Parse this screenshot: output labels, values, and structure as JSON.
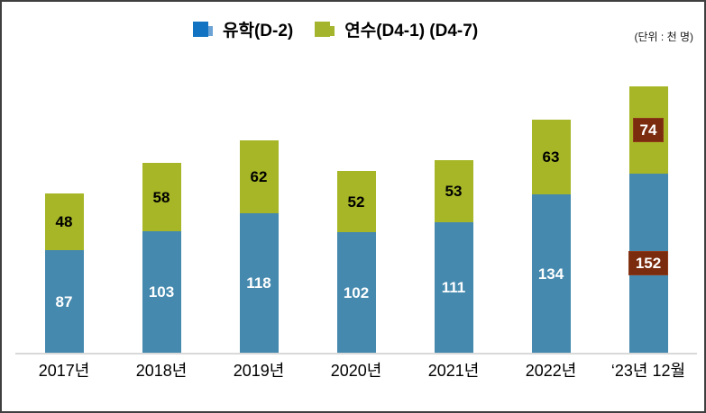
{
  "meta": {
    "unit_label": "(단위 : 천 명)"
  },
  "legend": {
    "items": [
      {
        "label": "유학(D-2)",
        "swatch_color": "#1273c2",
        "swatch_tab_color": "#6ba3d6"
      },
      {
        "label": "연수(D4-1) (D4-7)",
        "swatch_color": "#a4b42c",
        "swatch_tab_color": "#a4b42c"
      }
    ]
  },
  "chart_data": {
    "type": "bar",
    "stacked": true,
    "title": "",
    "xlabel": "",
    "ylabel": "",
    "unit": "천 명",
    "legend_position": "top",
    "grid": false,
    "axis_line_color": "#d9d9d9",
    "categories": [
      "2017년",
      "2018년",
      "2019년",
      "2020년",
      "2021년",
      "2022년",
      "‘23년 12월"
    ],
    "series": [
      {
        "name": "유학(D-2)",
        "color": "#4589ae",
        "label_color": "#ffffff",
        "values": [
          87,
          103,
          118,
          102,
          111,
          134,
          152
        ]
      },
      {
        "name": "연수(D4-1) (D4-7)",
        "color": "#a6b627",
        "label_color": "#000000",
        "values": [
          48,
          58,
          62,
          52,
          53,
          63,
          74
        ]
      }
    ],
    "highlight": {
      "category_index": 6,
      "box_color": "#7b2c0e",
      "text_color": "#ffffff"
    }
  }
}
